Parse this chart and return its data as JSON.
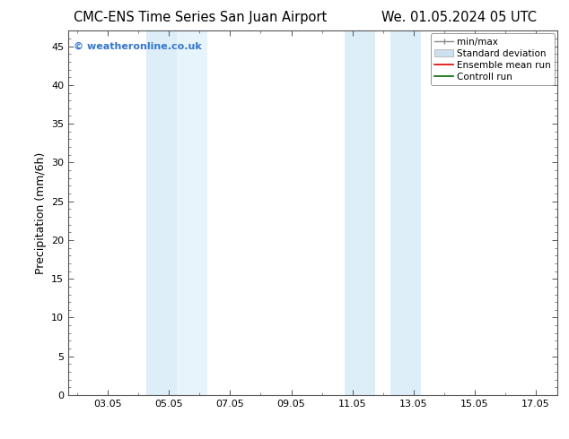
{
  "title_left": "CMC-ENS Time Series San Juan Airport",
  "title_right": "We. 01.05.2024 05 UTC",
  "ylabel": "Precipitation (mm/6h)",
  "ylim": [
    0,
    47
  ],
  "yticks": [
    0,
    5,
    10,
    15,
    20,
    25,
    30,
    35,
    40,
    45
  ],
  "xtick_labels": [
    "03.05",
    "05.05",
    "07.05",
    "09.05",
    "11.05",
    "13.05",
    "15.05",
    "17.05"
  ],
  "xtick_positions": [
    3,
    5,
    7,
    9,
    11,
    13,
    15,
    17
  ],
  "xlim": [
    1.708,
    17.708
  ],
  "shaded_bands": [
    {
      "x_start": 4.25,
      "x_end": 5.25,
      "color": "#ddeef8"
    },
    {
      "x_start": 5.25,
      "x_end": 6.25,
      "color": "#e8f4fc"
    },
    {
      "x_start": 10.75,
      "x_end": 11.75,
      "color": "#ddeef8"
    },
    {
      "x_start": 12.25,
      "x_end": 13.25,
      "color": "#ddeef8"
    }
  ],
  "watermark": "© weatheronline.co.uk",
  "watermark_color": "#3377cc",
  "background_color": "#ffffff",
  "plot_bg_color": "#ffffff",
  "title_fontsize": 10.5,
  "label_fontsize": 9,
  "tick_fontsize": 8,
  "legend_fontsize": 7.5
}
